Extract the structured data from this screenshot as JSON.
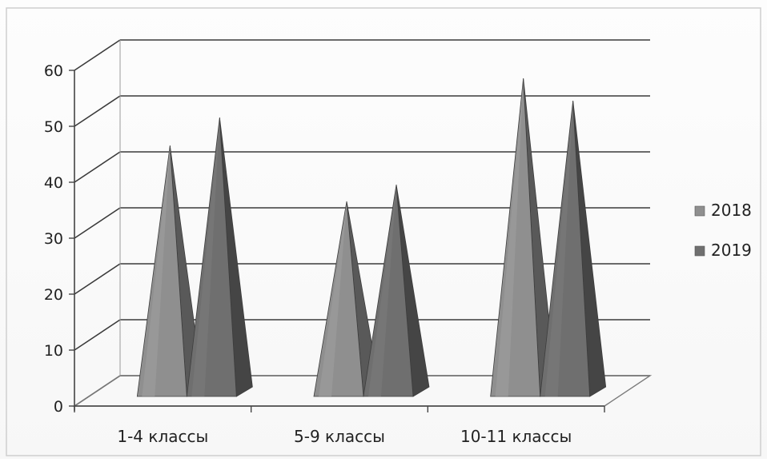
{
  "chart_data": {
    "type": "bar",
    "style": "3d-pyramid",
    "categories": [
      "1-4 классы",
      "5-9 классы",
      "10-11 классы"
    ],
    "series": [
      {
        "name": "2018",
        "values": [
          44,
          34,
          56
        ],
        "color": "#8f8f8f"
      },
      {
        "name": "2019",
        "values": [
          49,
          37,
          52
        ],
        "color": "#6f6f6f"
      }
    ],
    "ylim": [
      0,
      60
    ],
    "yticks": [
      "0",
      "10",
      "20",
      "30",
      "40",
      "50",
      "60"
    ],
    "grid": true,
    "legend_position": "right"
  }
}
